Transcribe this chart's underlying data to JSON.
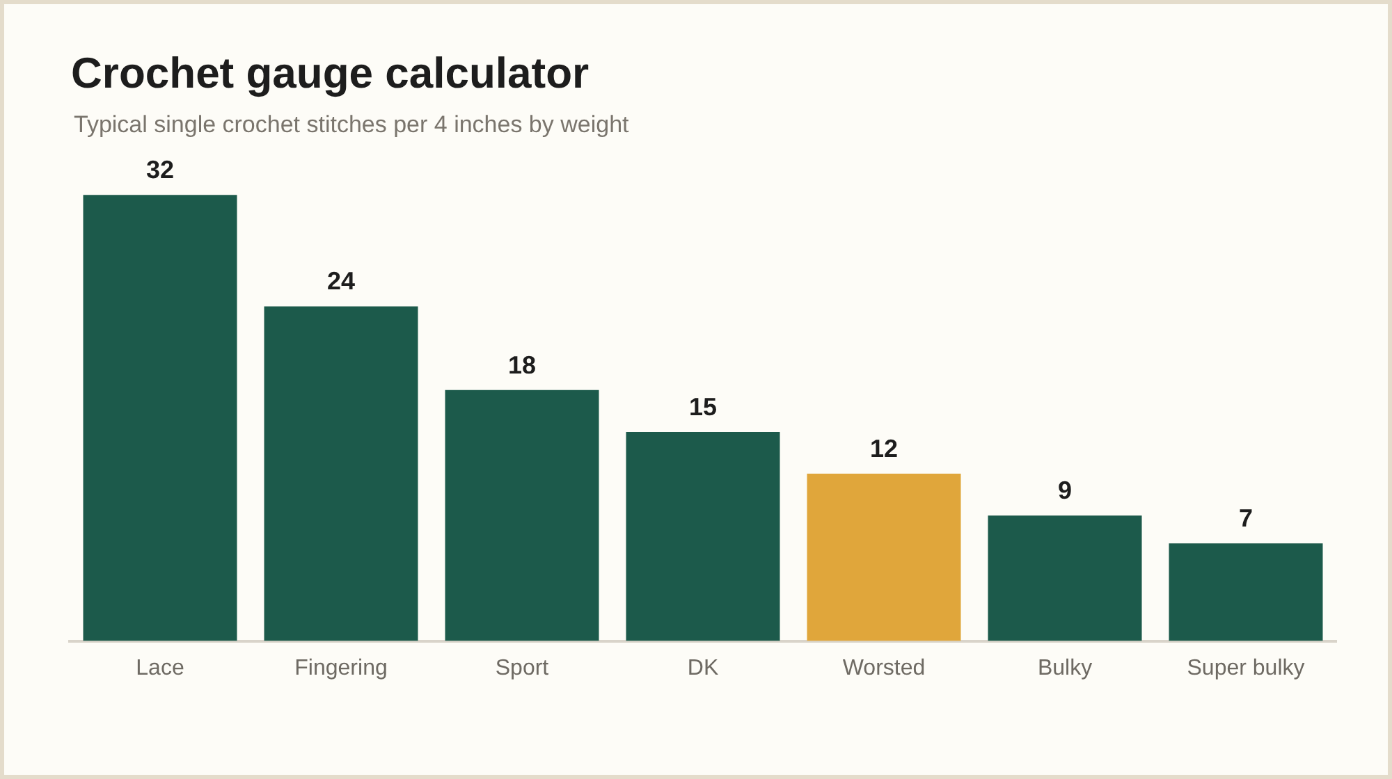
{
  "chart_data": {
    "type": "bar",
    "title": "Crochet gauge calculator",
    "subtitle": "Typical single crochet stitches per 4 inches by weight",
    "categories": [
      "Lace",
      "Fingering",
      "Sport",
      "DK",
      "Worsted",
      "Bulky",
      "Super bulky"
    ],
    "values": [
      32,
      24,
      18,
      15,
      12,
      9,
      7
    ],
    "colors": [
      "#1c5a4b",
      "#1c5a4b",
      "#1c5a4b",
      "#1c5a4b",
      "#e0a63b",
      "#1c5a4b",
      "#1c5a4b"
    ],
    "data_labels": true,
    "grid": false,
    "legend": false,
    "tick_labels": "x"
  }
}
